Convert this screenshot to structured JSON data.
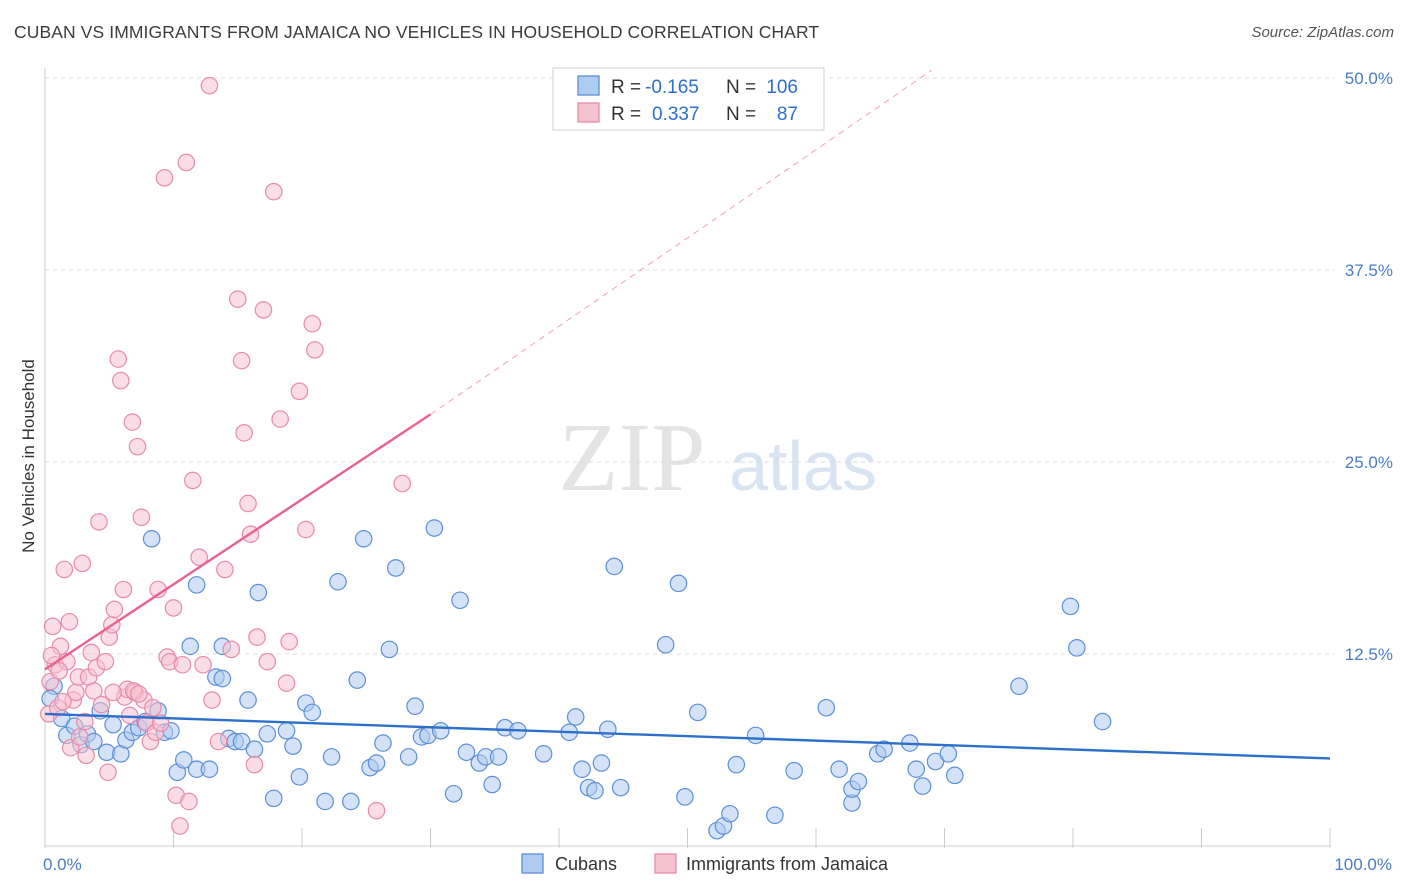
{
  "title": "CUBAN VS IMMIGRANTS FROM JAMAICA NO VEHICLES IN HOUSEHOLD CORRELATION CHART",
  "source": "Source: ZipAtlas.com",
  "watermark": {
    "zip": "ZIP",
    "atlas": "atlas"
  },
  "colors": {
    "blue_fill": "#aecbf0",
    "blue_stroke": "#5b8fd6",
    "blue_line": "#2d6fc9",
    "pink_fill": "#f6c1d1",
    "pink_stroke": "#e98aa8",
    "pink_line": "#e8638f",
    "tick_text": "#4a7dc4",
    "grid": "#dddddd"
  },
  "legend": {
    "rows": [
      {
        "r_label": "R =",
        "r_value": "-0.165",
        "n_label": "N =",
        "n_value": "106"
      },
      {
        "r_label": "R =",
        "r_value": "0.337",
        "n_label": "N =",
        "n_value": "87"
      }
    ]
  },
  "chart_data": {
    "type": "scatter",
    "title": "CUBAN VS IMMIGRANTS FROM JAMAICA NO VEHICLES IN HOUSEHOLD CORRELATION CHART",
    "xlabel": "",
    "ylabel": "No Vehicles in Household",
    "xlim": [
      0,
      100
    ],
    "ylim": [
      0,
      50
    ],
    "x_ticks": [
      {
        "value": 0,
        "label": "0.0%"
      },
      {
        "value": 100,
        "label": "100.0%"
      }
    ],
    "y_ticks": [
      {
        "value": 12.5,
        "label": "12.5%"
      },
      {
        "value": 25,
        "label": "25.0%"
      },
      {
        "value": 37.5,
        "label": "37.5%"
      },
      {
        "value": 50,
        "label": "50.0%"
      }
    ],
    "grid": true,
    "legend_position": "top-center",
    "series": [
      {
        "name": "Cubans",
        "color": "#5b8fd6",
        "trend": {
          "x": [
            0,
            100
          ],
          "y": [
            8.6,
            5.7
          ],
          "dashed": false
        },
        "points": [
          [
            0.7,
            10.4
          ],
          [
            1.3,
            8.3
          ],
          [
            1.7,
            7.2
          ],
          [
            2.3,
            7.8
          ],
          [
            2.8,
            6.6
          ],
          [
            3.3,
            7.3
          ],
          [
            3.8,
            6.8
          ],
          [
            4.3,
            8.8
          ],
          [
            4.8,
            6.1
          ],
          [
            5.3,
            7.9
          ],
          [
            5.9,
            6.0
          ],
          [
            6.3,
            6.9
          ],
          [
            6.8,
            7.4
          ],
          [
            7.3,
            7.7
          ],
          [
            7.8,
            8.1
          ],
          [
            8.3,
            20.0
          ],
          [
            8.8,
            8.8
          ],
          [
            9.3,
            7.4
          ],
          [
            9.8,
            7.5
          ],
          [
            10.3,
            4.8
          ],
          [
            10.8,
            5.6
          ],
          [
            11.3,
            13.0
          ],
          [
            11.8,
            17.0
          ],
          [
            11.8,
            5.0
          ],
          [
            12.8,
            5.0
          ],
          [
            13.3,
            11.0
          ],
          [
            13.8,
            13.0
          ],
          [
            14.3,
            7.0
          ],
          [
            14.8,
            6.8
          ],
          [
            15.3,
            6.8
          ],
          [
            15.8,
            9.5
          ],
          [
            16.3,
            6.3
          ],
          [
            16.6,
            16.5
          ],
          [
            17.3,
            7.3
          ],
          [
            17.8,
            3.1
          ],
          [
            18.8,
            7.5
          ],
          [
            19.3,
            6.5
          ],
          [
            19.8,
            4.5
          ],
          [
            20.3,
            9.3
          ],
          [
            20.8,
            8.7
          ],
          [
            21.8,
            2.9
          ],
          [
            22.3,
            5.8
          ],
          [
            22.8,
            17.2
          ],
          [
            23.8,
            2.9
          ],
          [
            24.3,
            10.8
          ],
          [
            24.8,
            20.0
          ],
          [
            25.3,
            5.1
          ],
          [
            25.8,
            5.4
          ],
          [
            26.3,
            6.7
          ],
          [
            26.8,
            12.8
          ],
          [
            27.3,
            18.1
          ],
          [
            28.3,
            5.8
          ],
          [
            28.8,
            9.1
          ],
          [
            29.3,
            7.1
          ],
          [
            29.8,
            7.2
          ],
          [
            30.3,
            20.7
          ],
          [
            30.8,
            7.5
          ],
          [
            31.8,
            3.4
          ],
          [
            32.3,
            16.0
          ],
          [
            32.8,
            6.1
          ],
          [
            33.8,
            5.4
          ],
          [
            34.3,
            5.8
          ],
          [
            34.8,
            4.0
          ],
          [
            35.3,
            5.8
          ],
          [
            35.8,
            7.7
          ],
          [
            36.8,
            7.5
          ],
          [
            38.8,
            6.0
          ],
          [
            40.8,
            7.4
          ],
          [
            41.3,
            8.4
          ],
          [
            41.8,
            5.0
          ],
          [
            42.3,
            3.8
          ],
          [
            42.8,
            3.6
          ],
          [
            43.3,
            5.4
          ],
          [
            43.8,
            7.6
          ],
          [
            44.3,
            18.2
          ],
          [
            44.8,
            3.8
          ],
          [
            48.3,
            13.1
          ],
          [
            49.3,
            17.1
          ],
          [
            49.8,
            3.2
          ],
          [
            50.8,
            8.7
          ],
          [
            52.3,
            1.0
          ],
          [
            52.8,
            1.3
          ],
          [
            53.3,
            2.1
          ],
          [
            53.8,
            5.3
          ],
          [
            55.3,
            7.2
          ],
          [
            56.8,
            2.0
          ],
          [
            58.3,
            4.9
          ],
          [
            60.8,
            9.0
          ],
          [
            61.8,
            5.0
          ],
          [
            62.8,
            2.8
          ],
          [
            62.8,
            3.7
          ],
          [
            63.3,
            4.2
          ],
          [
            64.8,
            6.0
          ],
          [
            65.3,
            6.3
          ],
          [
            67.3,
            6.7
          ],
          [
            67.8,
            5.0
          ],
          [
            68.3,
            3.9
          ],
          [
            69.3,
            5.5
          ],
          [
            70.3,
            6.0
          ],
          [
            70.8,
            4.6
          ],
          [
            75.8,
            10.4
          ],
          [
            79.8,
            15.6
          ],
          [
            80.3,
            12.9
          ],
          [
            82.3,
            8.1
          ],
          [
            13.8,
            10.9
          ],
          [
            0.4,
            9.6
          ]
        ]
      },
      {
        "name": "Immigrants from Jamaica",
        "color": "#e98aa8",
        "trend": {
          "x": [
            0,
            30
          ],
          "y": [
            11.5,
            28.1
          ],
          "dashed": false,
          "extension": {
            "x": [
              30,
              69
            ],
            "y": [
              28.1,
              50.5
            ],
            "dashed": true
          }
        },
        "points": [
          [
            0.3,
            8.6
          ],
          [
            0.6,
            14.3
          ],
          [
            0.8,
            11.8
          ],
          [
            1.0,
            9.0
          ],
          [
            1.2,
            13.0
          ],
          [
            1.5,
            18.0
          ],
          [
            1.7,
            12.0
          ],
          [
            1.9,
            14.6
          ],
          [
            2.2,
            9.5
          ],
          [
            2.4,
            10.0
          ],
          [
            2.6,
            11.0
          ],
          [
            2.9,
            18.4
          ],
          [
            3.1,
            8.1
          ],
          [
            3.4,
            11.0
          ],
          [
            3.6,
            12.6
          ],
          [
            3.8,
            10.1
          ],
          [
            4.0,
            11.6
          ],
          [
            4.2,
            21.1
          ],
          [
            4.4,
            9.2
          ],
          [
            4.7,
            12.0
          ],
          [
            5.0,
            13.6
          ],
          [
            5.2,
            14.4
          ],
          [
            5.4,
            15.4
          ],
          [
            5.7,
            31.7
          ],
          [
            5.9,
            30.3
          ],
          [
            6.1,
            16.7
          ],
          [
            6.2,
            9.7
          ],
          [
            6.4,
            10.2
          ],
          [
            6.6,
            8.5
          ],
          [
            6.8,
            27.6
          ],
          [
            7.0,
            10.0
          ],
          [
            7.2,
            26.0
          ],
          [
            7.5,
            21.4
          ],
          [
            7.7,
            9.5
          ],
          [
            7.9,
            8.0
          ],
          [
            8.2,
            6.8
          ],
          [
            8.4,
            9.0
          ],
          [
            8.6,
            7.4
          ],
          [
            8.8,
            16.7
          ],
          [
            9.0,
            8.0
          ],
          [
            9.3,
            43.5
          ],
          [
            9.5,
            12.3
          ],
          [
            9.7,
            12.0
          ],
          [
            10.0,
            15.5
          ],
          [
            10.2,
            3.3
          ],
          [
            10.5,
            1.3
          ],
          [
            10.7,
            11.8
          ],
          [
            11.0,
            44.5
          ],
          [
            11.2,
            2.9
          ],
          [
            11.5,
            23.8
          ],
          [
            12.0,
            18.8
          ],
          [
            12.3,
            11.8
          ],
          [
            12.8,
            49.5
          ],
          [
            13.0,
            9.5
          ],
          [
            13.5,
            6.8
          ],
          [
            14.0,
            18.0
          ],
          [
            14.5,
            12.8
          ],
          [
            15.0,
            35.6
          ],
          [
            15.3,
            31.6
          ],
          [
            15.5,
            26.9
          ],
          [
            15.8,
            22.3
          ],
          [
            16.0,
            20.3
          ],
          [
            16.3,
            5.3
          ],
          [
            16.5,
            13.6
          ],
          [
            17.0,
            34.9
          ],
          [
            17.3,
            12.0
          ],
          [
            17.8,
            42.6
          ],
          [
            18.3,
            27.8
          ],
          [
            18.8,
            10.6
          ],
          [
            19.0,
            13.3
          ],
          [
            19.8,
            29.6
          ],
          [
            20.3,
            20.6
          ],
          [
            20.8,
            34.0
          ],
          [
            21.0,
            32.3
          ],
          [
            25.8,
            2.3
          ],
          [
            27.8,
            23.6
          ],
          [
            0.4,
            10.7
          ],
          [
            0.5,
            12.4
          ],
          [
            1.1,
            11.4
          ],
          [
            1.4,
            9.4
          ],
          [
            2.0,
            6.4
          ],
          [
            2.7,
            7.1
          ],
          [
            3.2,
            5.9
          ],
          [
            4.9,
            4.8
          ],
          [
            5.3,
            10.0
          ],
          [
            6.9,
            10.1
          ],
          [
            7.3,
            9.9
          ]
        ]
      }
    ]
  },
  "bottom_legend": [
    {
      "label": "Cubans"
    },
    {
      "label": "Immigrants from Jamaica"
    }
  ]
}
